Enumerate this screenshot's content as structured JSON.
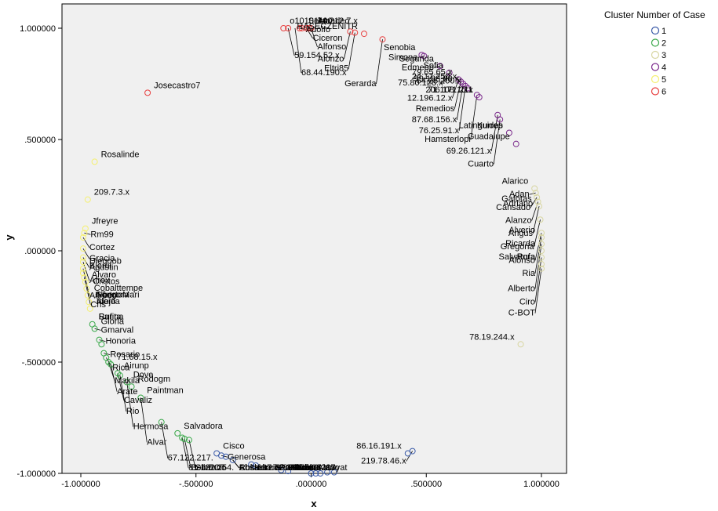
{
  "chart_data": {
    "type": "scatter",
    "xlabel": "x",
    "ylabel": "y",
    "xlim": [
      -1.1,
      1.1
    ],
    "ylim": [
      -1.0,
      1.1
    ],
    "x_ticks": [
      -1.0,
      -0.5,
      0.0,
      0.5,
      1.0
    ],
    "y_ticks": [
      -1.0,
      -0.5,
      0.0,
      0.5,
      1.0
    ],
    "x_tick_labels": [
      "-1.000000",
      "-.500000",
      ".000000",
      ".500000",
      "1.000000"
    ],
    "y_tick_labels": [
      "-1.000000",
      "-.500000",
      ".000000",
      ".500000",
      "1.000000"
    ],
    "grid": false,
    "legend_position": "top-right",
    "legend_title": "Cluster Number of Case",
    "series": [
      {
        "name": "1",
        "color": "#3b5ba8",
        "points": [
          {
            "x": -0.41,
            "y": -0.91,
            "label": "Cisco"
          },
          {
            "x": -0.39,
            "y": -0.92,
            "label": "Generosa"
          },
          {
            "x": -0.37,
            "y": -0.925
          },
          {
            "x": -0.34,
            "y": -0.94,
            "label": "Rosamaria"
          },
          {
            "x": -0.26,
            "y": -0.96,
            "label": "LizziePaola"
          },
          {
            "x": -0.24,
            "y": -0.965,
            "label": "97.82.210.x"
          },
          {
            "x": -0.13,
            "y": -0.985,
            "label": "172.202.237"
          },
          {
            "x": -0.1,
            "y": -0.99,
            "label": "Aluino"
          },
          {
            "x": 0.0,
            "y": -1.0,
            "label": "Alano"
          },
          {
            "x": 0.02,
            "y": -1.0
          },
          {
            "x": 0.04,
            "y": -1.0,
            "label": "Abran"
          },
          {
            "x": 0.07,
            "y": -0.995,
            "label": "Roldana"
          },
          {
            "x": 0.1,
            "y": -0.995
          },
          {
            "x": 0.42,
            "y": -0.91,
            "label": "86.16.191.x"
          },
          {
            "x": 0.44,
            "y": -0.9,
            "label": "219.78.46.x"
          }
        ]
      },
      {
        "name": "2",
        "color": "#3aa84a",
        "points": [
          {
            "x": -0.95,
            "y": -0.33,
            "label": "Rufina"
          },
          {
            "x": -0.94,
            "y": -0.35,
            "label": "Gmarval"
          },
          {
            "x": -0.92,
            "y": -0.4,
            "label": "Honoria"
          },
          {
            "x": -0.91,
            "y": -0.42
          },
          {
            "x": -0.9,
            "y": -0.46,
            "label": "Rosario"
          },
          {
            "x": -0.89,
            "y": -0.48,
            "label": "Rica"
          },
          {
            "x": -0.88,
            "y": -0.5,
            "label": "Makila"
          },
          {
            "x": -0.87,
            "y": -0.51,
            "label": "Arate"
          },
          {
            "x": -0.84,
            "y": -0.55,
            "label": "Cavaliz"
          },
          {
            "x": -0.83,
            "y": -0.56,
            "label": "Rio"
          },
          {
            "x": -0.8,
            "y": -0.59,
            "label": "Hermosa"
          },
          {
            "x": -0.78,
            "y": -0.61,
            "label": "Rodogm"
          },
          {
            "x": -0.74,
            "y": -0.66,
            "label": "Alvar"
          },
          {
            "x": -0.65,
            "y": -0.77,
            "label": "67.122.217."
          },
          {
            "x": -0.58,
            "y": -0.82,
            "label": "Salvadora"
          },
          {
            "x": -0.56,
            "y": -0.84,
            "label": "81.132.254."
          },
          {
            "x": -0.55,
            "y": -0.845,
            "label": "BelbBOT"
          },
          {
            "x": -0.53,
            "y": -0.85,
            "label": "Sorruno"
          }
        ]
      },
      {
        "name": "3",
        "color": "#d8d6a2",
        "points": [
          {
            "x": 0.97,
            "y": 0.28,
            "label": "Alarico"
          },
          {
            "x": 0.975,
            "y": 0.26,
            "label": "Adan"
          },
          {
            "x": 0.98,
            "y": 0.24,
            "label": "Cansado"
          },
          {
            "x": 0.985,
            "y": 0.22,
            "label": "Alanzo"
          },
          {
            "x": 0.99,
            "y": 0.2,
            "label": "Angus"
          },
          {
            "x": 0.995,
            "y": 0.14,
            "label": "Gregoria"
          },
          {
            "x": 1.0,
            "y": 0.08,
            "label": "Alonso"
          },
          {
            "x": 1.0,
            "y": 0.06,
            "label": "Ria"
          },
          {
            "x": 1.0,
            "y": 0.03,
            "label": "Alberto"
          },
          {
            "x": 1.0,
            "y": 0.0
          },
          {
            "x": 1.0,
            "y": -0.03,
            "label": "Ciro"
          },
          {
            "x": 1.0,
            "y": -0.06,
            "label": "Rufa"
          },
          {
            "x": 1.0,
            "y": -0.08,
            "label": "C-BOT"
          },
          {
            "x": 0.91,
            "y": -0.42,
            "label": "78.19.244.x"
          }
        ]
      },
      {
        "name": "4",
        "color": "#7b2a8c",
        "points": [
          {
            "x": 0.48,
            "y": 0.88,
            "label": "Senobia"
          },
          {
            "x": 0.49,
            "y": 0.875,
            "label": "Simona"
          },
          {
            "x": 0.56,
            "y": 0.83,
            "label": "Edmenb"
          },
          {
            "x": 0.6,
            "y": 0.8,
            "label": "75.80.128.x"
          },
          {
            "x": 0.64,
            "y": 0.77,
            "label": "12.196.12.x"
          },
          {
            "x": 0.65,
            "y": 0.76,
            "label": "Remedios"
          },
          {
            "x": 0.66,
            "y": 0.75,
            "label": "87.68.156.x"
          },
          {
            "x": 0.67,
            "y": 0.74,
            "label": "76.25.91.x"
          },
          {
            "x": 0.68,
            "y": 0.73
          },
          {
            "x": 0.72,
            "y": 0.7,
            "label": "Hamsterlopi"
          },
          {
            "x": 0.73,
            "y": 0.69,
            "label": "71.108.10.x"
          },
          {
            "x": 0.81,
            "y": 0.61,
            "label": "69.26.121.x"
          },
          {
            "x": 0.82,
            "y": 0.59,
            "label": "Cuarto"
          },
          {
            "x": 0.86,
            "y": 0.53,
            "label": "Latinguides"
          },
          {
            "x": 0.89,
            "y": 0.48,
            "label": "Guadalupe"
          }
        ]
      },
      {
        "name": "5",
        "color": "#f5f070",
        "points": [
          {
            "x": -0.94,
            "y": 0.4,
            "label": "Rosalinde"
          },
          {
            "x": -0.97,
            "y": 0.23,
            "label": "209.7.3.x"
          },
          {
            "x": -0.98,
            "y": 0.1,
            "label": "Jfreyre"
          },
          {
            "x": -0.985,
            "y": 0.08,
            "label": "Rm99"
          },
          {
            "x": -0.99,
            "y": 0.06,
            "label": "Cortez"
          },
          {
            "x": -0.99,
            "y": 0.01,
            "label": "Gracia"
          },
          {
            "x": -0.99,
            "y": -0.03,
            "label": "Agustin"
          },
          {
            "x": -0.99,
            "y": -0.05,
            "label": "Afrox"
          },
          {
            "x": -0.99,
            "y": -0.08,
            "label": "Alfredo"
          },
          {
            "x": -0.99,
            "y": -0.1,
            "label": "Bjornl"
          },
          {
            "x": -0.985,
            "y": -0.12,
            "label": "Cris"
          },
          {
            "x": -0.98,
            "y": -0.14,
            "label": "Alvaro"
          },
          {
            "x": -0.975,
            "y": -0.17,
            "label": "Cristos"
          },
          {
            "x": -0.97,
            "y": -0.2,
            "label": "Cobalttempe"
          },
          {
            "x": -0.965,
            "y": -0.23,
            "label": "Góngora"
          },
          {
            "x": -0.96,
            "y": -0.26,
            "label": "Alejo"
          }
        ]
      },
      {
        "name": "6",
        "color": "#e84040",
        "points": [
          {
            "x": -0.71,
            "y": 0.71,
            "label": "Josecastro7"
          },
          {
            "x": -0.12,
            "y": 1.0,
            "label": "o10101100"
          },
          {
            "x": -0.1,
            "y": 1.0
          },
          {
            "x": -0.05,
            "y": 1.0,
            "label": "Adolfo"
          },
          {
            "x": -0.04,
            "y": 1.0
          },
          {
            "x": -0.02,
            "y": 1.0,
            "label": "Ciceron"
          },
          {
            "x": -0.01,
            "y": 1.0
          },
          {
            "x": 0.0,
            "y": 1.0,
            "label": "Alfonso"
          },
          {
            "x": 0.17,
            "y": 0.985,
            "label": "Alonzo"
          },
          {
            "x": 0.19,
            "y": 0.98,
            "label": "Eltri85"
          },
          {
            "x": 0.23,
            "y": 0.975,
            "label": "RASECZENITR"
          },
          {
            "x": 0.31,
            "y": 0.95,
            "label": "Gerarda"
          }
        ]
      }
    ],
    "annotations": [
      {
        "text": "68.44.190.x",
        "x": -0.07,
        "y": 1.0
      },
      {
        "text": "Amadeo",
        "x": 0.0,
        "y": 1.0
      },
      {
        "text": "74.212.7.x",
        "x": 0.0,
        "y": 1.0
      },
      {
        "text": "59.154.52.x",
        "x": -0.1,
        "y": 1.0
      },
      {
        "text": "Seina",
        "x": -0.04,
        "y": 1.0
      },
      {
        "text": "Segunda",
        "x": 0.56,
        "y": 0.83
      },
      {
        "text": "Sofia",
        "x": 0.6,
        "y": 0.8
      },
      {
        "text": "79.65.65.x",
        "x": 0.64,
        "y": 0.77
      },
      {
        "text": "24.17.250.x",
        "x": 0.66,
        "y": 0.75
      },
      {
        "text": "59.188.88.x",
        "x": 0.67,
        "y": 0.74
      },
      {
        "text": "64.25.200.x",
        "x": 0.68,
        "y": 0.73
      },
      {
        "text": "206.171.211",
        "x": 0.73,
        "y": 0.69
      },
      {
        "text": "Kurrop",
        "x": 0.86,
        "y": 0.53
      },
      {
        "text": "Gafotas",
        "x": 0.985,
        "y": 0.2
      },
      {
        "text": "Adriano",
        "x": 0.99,
        "y": 0.18
      },
      {
        "text": "Alverio",
        "x": 1.0,
        "y": 0.06
      },
      {
        "text": "Ricarda",
        "x": 1.0,
        "y": 0.0
      },
      {
        "text": "Salvatora",
        "x": 1.0,
        "y": -0.06
      },
      {
        "text": "Diegoob",
        "x": -0.99,
        "y": -0.08
      },
      {
        "text": "AlbertoMari",
        "x": -0.965,
        "y": -0.23
      },
      {
        "text": "Idonia",
        "x": -0.96,
        "y": -0.26
      },
      {
        "text": "Sarita",
        "x": -0.95,
        "y": -0.33
      },
      {
        "text": "Gloria",
        "x": -0.94,
        "y": -0.35
      },
      {
        "text": "71.68.15.x",
        "x": -0.87,
        "y": -0.51
      },
      {
        "text": "Airunp",
        "x": -0.84,
        "y": -0.55
      },
      {
        "text": "Dove",
        "x": -0.8,
        "y": -0.59
      },
      {
        "text": "Paintman",
        "x": -0.74,
        "y": -0.66
      },
      {
        "text": "Chkbot",
        "x": -0.34,
        "y": -0.94
      },
      {
        "text": "Absalon",
        "x": -0.34,
        "y": -0.94
      },
      {
        "text": "Pablo6213",
        "x": -0.1,
        "y": -0.99
      },
      {
        "text": "Anoryat",
        "x": 0.0,
        "y": -1.0
      },
      {
        "text": "Shoshana",
        "x": 0.04,
        "y": -1.0
      },
      {
        "text": "Socorro",
        "x": 0.07,
        "y": -1.0
      },
      {
        "text": "80.175.28.x",
        "x": 0.1,
        "y": -1.0
      }
    ]
  }
}
